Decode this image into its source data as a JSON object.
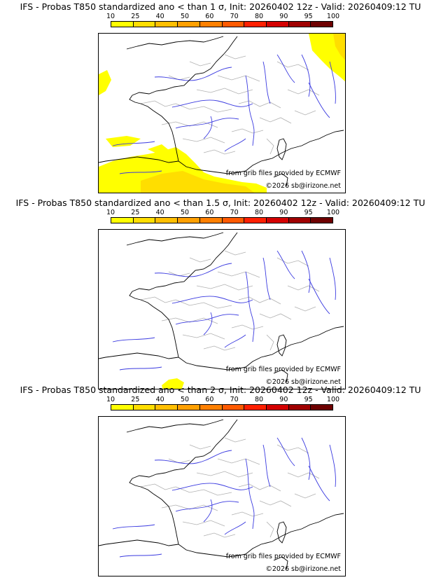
{
  "colorbar": {
    "ticks": [
      "10",
      "25",
      "40",
      "50",
      "60",
      "70",
      "80",
      "90",
      "95",
      "100"
    ],
    "colors": [
      "#ffff00",
      "#ffde00",
      "#ffbf00",
      "#ffa000",
      "#ff8000",
      "#ff5a00",
      "#ff2000",
      "#d40000",
      "#a00000",
      "#6e0000"
    ]
  },
  "land_color": "#ffffff",
  "border_color": "#b0b0b0",
  "river_color": "#3a3ae0",
  "coast_color": "#000000",
  "panels": [
    {
      "title": "IFS - Probas T850  standardized ano < than 1 σ, Init: 20260402 12z - Valid: 20260409:12 TU",
      "credit_source": "from grib files provided by ECMWF",
      "credit_copyright": "©2026 sb@irizone.net",
      "anomaly_level": "1 σ"
    },
    {
      "title": "IFS - Probas T850  standardized ano < than 1.5 σ, Init: 20260402 12z - Valid: 20260409:12 TU",
      "credit_source": "from grib files provided by ECMWF",
      "credit_copyright": "©2026 sb@irizone.net",
      "anomaly_level": "1.5 σ"
    },
    {
      "title": "IFS - Probas T850  standardized ano < than 2 σ, Init: 20260402 12z - Valid: 20260409:12 TU",
      "credit_source": "from grib files provided by ECMWF",
      "credit_copyright": "©2026 sb@irizone.net",
      "anomaly_level": "2 σ"
    }
  ]
}
